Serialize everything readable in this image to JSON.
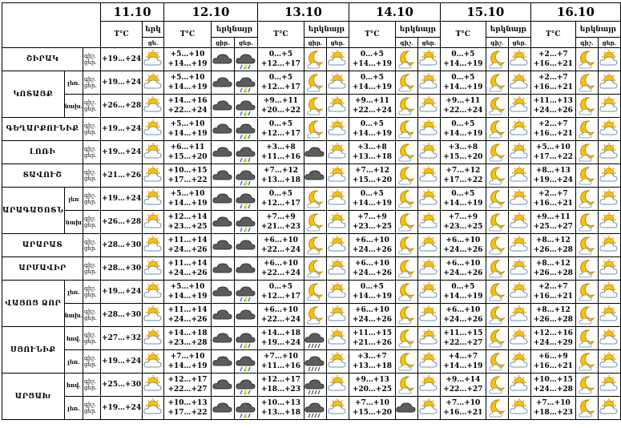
{
  "dates": [
    "11.10",
    "12.10",
    "13.10",
    "14.10",
    "15.10",
    "16.10"
  ],
  "headers": {
    "temp": "T°C",
    "icon_short": "երկ",
    "icon_full": "երկնայր",
    "day": "ցե.",
    "day_short": "ցիր.",
    "night": "գիշ.",
    "night2": "ցեր."
  },
  "day_labels": {
    "night": "գիշ.",
    "day": "ցեր."
  },
  "rows": [
    {
      "region": "ՇԻՐԱԿ",
      "zone": "",
      "n11": "",
      "d11": "+19…+24",
      "i11": "sun",
      "days": [
        {
          "t1": "+5…+10",
          "t2": "+14…+19",
          "a": "cloud",
          "b": "rain"
        },
        {
          "t1": "0…+5",
          "t2": "+12…+17",
          "a": "moon",
          "b": "suncloud"
        },
        {
          "t1": "0…+5",
          "t2": "+14…+19",
          "a": "moon",
          "b": "suncloud"
        },
        {
          "t1": "0…+5",
          "t2": "+14…+19",
          "a": "moon",
          "b": "suncloud"
        },
        {
          "t1": "+2…+7",
          "t2": "+16…+21",
          "a": "moon",
          "b": "suncloud"
        }
      ]
    },
    {
      "region": "ԿՈՏԱՅՔ",
      "zone": "լեռ.",
      "n11": "",
      "d11": "+19…+24",
      "i11": "sun",
      "days": [
        {
          "t1": "+5…+10",
          "t2": "+14…+19",
          "a": "cloud",
          "b": "rain"
        },
        {
          "t1": "0…+5",
          "t2": "+12…+17",
          "a": "moon",
          "b": "suncloud"
        },
        {
          "t1": "0…+5",
          "t2": "+14…+19",
          "a": "moon",
          "b": "suncloud"
        },
        {
          "t1": "0…+5",
          "t2": "+14…+19",
          "a": "moon",
          "b": "suncloud"
        },
        {
          "t1": "+2…+7",
          "t2": "+16…+21",
          "a": "moon",
          "b": "suncloud"
        }
      ]
    },
    {
      "region": "",
      "zone": "նախ.",
      "n11": "",
      "d11": "+26…+28",
      "i11": "sun",
      "days": [
        {
          "t1": "+14…+16",
          "t2": "+22…+24",
          "a": "cloud",
          "b": "rain"
        },
        {
          "t1": "+9…+11",
          "t2": "+20…+22",
          "a": "moon",
          "b": "suncloud"
        },
        {
          "t1": "+9…+11",
          "t2": "+22…+24",
          "a": "moon",
          "b": "suncloud"
        },
        {
          "t1": "+9…+11",
          "t2": "+22…+24",
          "a": "moon",
          "b": "suncloud"
        },
        {
          "t1": "+11…+13",
          "t2": "+24…+26",
          "a": "moon",
          "b": "suncloud"
        }
      ]
    },
    {
      "region": "ԳԵՂԱՐՔՈՒՆԻՔ",
      "zone": "",
      "n11": "",
      "d11": "+19…+24",
      "i11": "sun",
      "days": [
        {
          "t1": "+5…+10",
          "t2": "+14…+19",
          "a": "cloud",
          "b": "rain"
        },
        {
          "t1": "0…+5",
          "t2": "+12…+17",
          "a": "moon",
          "b": "suncloud"
        },
        {
          "t1": "0…+5",
          "t2": "+14…+19",
          "a": "moon",
          "b": "suncloud"
        },
        {
          "t1": "0…+5",
          "t2": "+14…+19",
          "a": "moon",
          "b": "suncloud"
        },
        {
          "t1": "+2…+7",
          "t2": "+16…+21",
          "a": "moon",
          "b": "suncloud"
        }
      ]
    },
    {
      "region": "ԼՈՌԻ",
      "zone": "",
      "n11": "",
      "d11": "+19…+24",
      "i11": "sun",
      "days": [
        {
          "t1": "+6…+11",
          "t2": "+15…+20",
          "a": "cloud",
          "b": "rain"
        },
        {
          "t1": "+3…+8",
          "t2": "+11…+16",
          "a": "cloud",
          "b": "suncloud"
        },
        {
          "t1": "+3…+8",
          "t2": "+13…+18",
          "a": "moon",
          "b": "suncloud"
        },
        {
          "t1": "+3…+8",
          "t2": "+15…+20",
          "a": "moon",
          "b": "suncloud"
        },
        {
          "t1": "+5…+10",
          "t2": "+17…+22",
          "a": "moon",
          "b": "suncloud"
        }
      ]
    },
    {
      "region": "ՏԱՎՈՒՇ",
      "zone": "",
      "n11": "",
      "d11": "+21…+26",
      "i11": "sun",
      "days": [
        {
          "t1": "+10…+15",
          "t2": "+17…+22",
          "a": "cloud",
          "b": "rain"
        },
        {
          "t1": "+7…+12",
          "t2": "+13…+18",
          "a": "cloud",
          "b": "suncloud"
        },
        {
          "t1": "+7…+12",
          "t2": "+15…+20",
          "a": "moon",
          "b": "suncloud"
        },
        {
          "t1": "+7…+12",
          "t2": "+17…+22",
          "a": "moon",
          "b": "suncloud"
        },
        {
          "t1": "+8…+13",
          "t2": "+19…+24",
          "a": "moon",
          "b": "suncloud"
        }
      ]
    },
    {
      "region": "ԱՐԱԳԱԾՈՏՆ",
      "zone": "լեռ",
      "n11": "",
      "d11": "+19…+24",
      "i11": "sun",
      "days": [
        {
          "t1": "+5…+10",
          "t2": "+14…+19",
          "a": "cloud",
          "b": "rain"
        },
        {
          "t1": "0…+5",
          "t2": "+12…+17",
          "a": "moon",
          "b": "suncloud"
        },
        {
          "t1": "0…+5",
          "t2": "+14…+19",
          "a": "moon",
          "b": "suncloud"
        },
        {
          "t1": "0…+5",
          "t2": "+14…+19",
          "a": "moon",
          "b": "suncloud"
        },
        {
          "t1": "+2…+7",
          "t2": "+16…+21",
          "a": "moon",
          "b": "suncloud"
        }
      ]
    },
    {
      "region": "",
      "zone": "նախ",
      "n11": "",
      "d11": "+26…+28",
      "i11": "sun",
      "days": [
        {
          "t1": "+12…+14",
          "t2": "+23…+25",
          "a": "cloud",
          "b": "rain"
        },
        {
          "t1": "+7…+9",
          "t2": "+21…+23",
          "a": "moon",
          "b": "suncloud"
        },
        {
          "t1": "+7…+9",
          "t2": "+23…+25",
          "a": "moon",
          "b": "suncloud"
        },
        {
          "t1": "+7…+9",
          "t2": "+23…+25",
          "a": "moon",
          "b": "suncloud"
        },
        {
          "t1": "+9…+11",
          "t2": "+25…+27",
          "a": "moon",
          "b": "suncloud"
        }
      ]
    },
    {
      "region": "ԱՐԱՐԱՏ",
      "zone": "",
      "n11": "",
      "d11": "+28…+30",
      "i11": "sun",
      "days": [
        {
          "t1": "+11…+14",
          "t2": "+24…+26",
          "a": "cloud",
          "b": "cloud"
        },
        {
          "t1": "+6…+10",
          "t2": "+22…+24",
          "a": "moon",
          "b": "suncloud"
        },
        {
          "t1": "+6…+10",
          "t2": "+24…+26",
          "a": "moon",
          "b": "suncloud"
        },
        {
          "t1": "+6…+10",
          "t2": "+24…+26",
          "a": "moon",
          "b": "suncloud"
        },
        {
          "t1": "+8…+12",
          "t2": "+26…+28",
          "a": "moon",
          "b": "suncloud"
        }
      ]
    },
    {
      "region": "ԱՐՄԱՎԻՐ",
      "zone": "",
      "n11": "",
      "d11": "+28…+30",
      "i11": "sun",
      "days": [
        {
          "t1": "+11…+14",
          "t2": "+24…+26",
          "a": "cloud",
          "b": "cloud"
        },
        {
          "t1": "+6…+10",
          "t2": "+22…+24",
          "a": "moon",
          "b": "suncloud"
        },
        {
          "t1": "+6…+10",
          "t2": "+24…+26",
          "a": "moon",
          "b": "suncloud"
        },
        {
          "t1": "+6…+10",
          "t2": "+24…+26",
          "a": "moon",
          "b": "suncloud"
        },
        {
          "t1": "+8…+12",
          "t2": "+26…+28",
          "a": "moon",
          "b": "suncloud"
        }
      ]
    },
    {
      "region": "ՎԱՅՈՑ ՁՈՐ",
      "zone": "լեռ.",
      "n11": "",
      "d11": "+19…+24",
      "i11": "sun",
      "days": [
        {
          "t1": "+5…+10",
          "t2": "+14…+19",
          "a": "cloud",
          "b": "rain"
        },
        {
          "t1": "0…+5",
          "t2": "+12…+17",
          "a": "moon",
          "b": "suncloud"
        },
        {
          "t1": "0…+5",
          "t2": "+14…+19",
          "a": "moon",
          "b": "suncloud"
        },
        {
          "t1": "0…+5",
          "t2": "+14…+19",
          "a": "moon",
          "b": "suncloud"
        },
        {
          "t1": "+2…+7",
          "t2": "+16…+21",
          "a": "moon",
          "b": "suncloud"
        }
      ]
    },
    {
      "region": "",
      "zone": "նախ.",
      "n11": "",
      "d11": "+28…+30",
      "i11": "sun",
      "days": [
        {
          "t1": "+11…+14",
          "t2": "+24…+26",
          "a": "cloud",
          "b": "cloud"
        },
        {
          "t1": "+6…+10",
          "t2": "+22…+24",
          "a": "moon",
          "b": "suncloud"
        },
        {
          "t1": "+6…+10",
          "t2": "+24…+26",
          "a": "moon",
          "b": "suncloud"
        },
        {
          "t1": "+6…+10",
          "t2": "+24…+26",
          "a": "moon",
          "b": "suncloud"
        },
        {
          "t1": "+8…+12",
          "t2": "+26…+28",
          "a": "moon",
          "b": "suncloud"
        }
      ]
    },
    {
      "region": "ՍՅՈՒՆԻՔ",
      "zone": "հով.",
      "n11": "",
      "d11": "+27…+32",
      "i11": "sun",
      "days": [
        {
          "t1": "+14…+18",
          "t2": "+23…+28",
          "a": "cloud",
          "b": "rain"
        },
        {
          "t1": "+14…+18",
          "t2": "+19…+24",
          "a": "storm",
          "b": "suncloud"
        },
        {
          "t1": "+11…+15",
          "t2": "+21…+26",
          "a": "moon",
          "b": "suncloud"
        },
        {
          "t1": "+11…+15",
          "t2": "+22…+27",
          "a": "moon",
          "b": "suncloud"
        },
        {
          "t1": "+12…+16",
          "t2": "+24…+29",
          "a": "moon",
          "b": "suncloud"
        }
      ]
    },
    {
      "region": "",
      "zone": "լեռ.",
      "n11": "",
      "d11": "+19…+24",
      "i11": "sun",
      "days": [
        {
          "t1": "+7…+10",
          "t2": "+14…+19",
          "a": "cloud",
          "b": "rain"
        },
        {
          "t1": "+7…+10",
          "t2": "+11…+16",
          "a": "storm",
          "b": "suncloud"
        },
        {
          "t1": "+3…+7",
          "t2": "+13…+18",
          "a": "moon",
          "b": "suncloud"
        },
        {
          "t1": "+4…+7",
          "t2": "+14…+19",
          "a": "moon",
          "b": "suncloud"
        },
        {
          "t1": "+6…+9",
          "t2": "+16…+21",
          "a": "moon",
          "b": "suncloud"
        }
      ]
    },
    {
      "region": "ԱՐՑԱԽ",
      "zone": "հով.",
      "n11": "",
      "d11": "+25…+30",
      "i11": "sun",
      "days": [
        {
          "t1": "+12…+17",
          "t2": "+22…+27",
          "a": "cloud",
          "b": "rain"
        },
        {
          "t1": "+12…+17",
          "t2": "+18…+23",
          "a": "storm",
          "b": "suncloud"
        },
        {
          "t1": "+9…+13",
          "t2": "+20…+25",
          "a": "moon",
          "b": "suncloud"
        },
        {
          "t1": "+9…+14",
          "t2": "+22…+27",
          "a": "moon",
          "b": "suncloud"
        },
        {
          "t1": "+10…+15",
          "t2": "+24…+28",
          "a": "moon",
          "b": "suncloud"
        }
      ]
    },
    {
      "region": "",
      "zone": "լեռ.",
      "n11": "",
      "d11": "+19…+24",
      "i11": "sun",
      "days": [
        {
          "t1": "+10…+13",
          "t2": "+17…+22",
          "a": "cloud",
          "b": "rain"
        },
        {
          "t1": "+10…+13",
          "t2": "+13…+18",
          "a": "storm",
          "b": "suncloud"
        },
        {
          "t1": "+7…+10",
          "t2": "+15…+20",
          "a": "cloud",
          "b": "suncloud"
        },
        {
          "t1": "+7…+10",
          "t2": "+16…+21",
          "a": "moon",
          "b": "suncloud"
        },
        {
          "t1": "+7…+10",
          "t2": "+18…+23",
          "a": "moon",
          "b": "suncloud"
        }
      ]
    }
  ]
}
